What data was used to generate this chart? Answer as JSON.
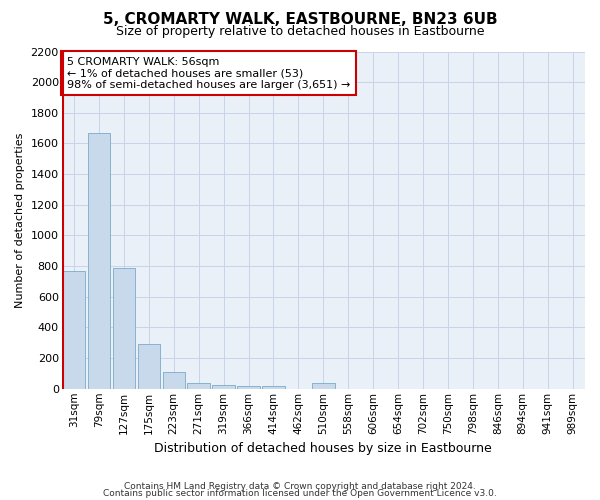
{
  "title": "5, CROMARTY WALK, EASTBOURNE, BN23 6UB",
  "subtitle": "Size of property relative to detached houses in Eastbourne",
  "xlabel": "Distribution of detached houses by size in Eastbourne",
  "ylabel": "Number of detached properties",
  "categories": [
    "31sqm",
    "79sqm",
    "127sqm",
    "175sqm",
    "223sqm",
    "271sqm",
    "319sqm",
    "366sqm",
    "414sqm",
    "462sqm",
    "510sqm",
    "558sqm",
    "606sqm",
    "654sqm",
    "702sqm",
    "750sqm",
    "798sqm",
    "846sqm",
    "894sqm",
    "941sqm",
    "989sqm"
  ],
  "values": [
    770,
    1670,
    790,
    290,
    110,
    38,
    25,
    20,
    18,
    0,
    35,
    0,
    0,
    0,
    0,
    0,
    0,
    0,
    0,
    0,
    0
  ],
  "bar_color": "#c9d9ec",
  "bar_edge_color": "#7aaac8",
  "property_line_color": "#cc0000",
  "annotation_text": "5 CROMARTY WALK: 56sqm\n← 1% of detached houses are smaller (53)\n98% of semi-detached houses are larger (3,651) →",
  "annotation_box_color": "#cc0000",
  "ylim": [
    0,
    2200
  ],
  "yticks": [
    0,
    200,
    400,
    600,
    800,
    1000,
    1200,
    1400,
    1600,
    1800,
    2000,
    2200
  ],
  "footer1": "Contains HM Land Registry data © Crown copyright and database right 2024.",
  "footer2": "Contains public sector information licensed under the Open Government Licence v3.0.",
  "grid_color": "#c8d4e8",
  "background_color": "#eaf0f8"
}
